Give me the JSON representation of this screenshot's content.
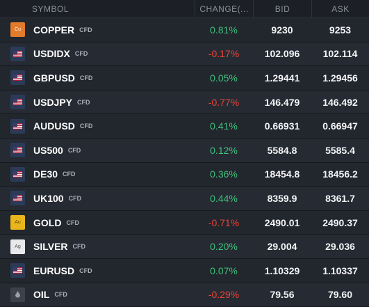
{
  "header": {
    "symbol": "SYMBOL",
    "change": "CHANGE(...",
    "bid": "BID",
    "ask": "ASK"
  },
  "rows": [
    {
      "name": "COPPER",
      "tag": "CFD",
      "change": "0.81%",
      "dir": "pos",
      "bid": "9230",
      "ask": "9253",
      "icon": "copper-icon",
      "icon_text": "Cu",
      "icon_kind": "metal-cu"
    },
    {
      "name": "USDIDX",
      "tag": "CFD",
      "change": "-0.17%",
      "dir": "neg",
      "bid": "102.096",
      "ask": "102.114",
      "icon": "us-flag-index-icon",
      "icon_text": "",
      "icon_kind": "flag"
    },
    {
      "name": "GBPUSD",
      "tag": "CFD",
      "change": "0.05%",
      "dir": "pos",
      "bid": "1.29441",
      "ask": "1.29456",
      "icon": "gb-us-flag-icon",
      "icon_text": "",
      "icon_kind": "flag"
    },
    {
      "name": "USDJPY",
      "tag": "CFD",
      "change": "-0.77%",
      "dir": "neg",
      "bid": "146.479",
      "ask": "146.492",
      "icon": "us-jp-flag-icon",
      "icon_text": "",
      "icon_kind": "flag"
    },
    {
      "name": "AUDUSD",
      "tag": "CFD",
      "change": "0.41%",
      "dir": "pos",
      "bid": "0.66931",
      "ask": "0.66947",
      "icon": "au-us-flag-icon",
      "icon_text": "",
      "icon_kind": "flag"
    },
    {
      "name": "US500",
      "tag": "CFD",
      "change": "0.12%",
      "dir": "pos",
      "bid": "5584.8",
      "ask": "5585.4",
      "icon": "us-flag-index-icon",
      "icon_text": "",
      "icon_kind": "flag"
    },
    {
      "name": "DE30",
      "tag": "CFD",
      "change": "0.36%",
      "dir": "pos",
      "bid": "18454.8",
      "ask": "18456.2",
      "icon": "de-flag-icon",
      "icon_text": "",
      "icon_kind": "flag"
    },
    {
      "name": "UK100",
      "tag": "CFD",
      "change": "0.44%",
      "dir": "pos",
      "bid": "8359.9",
      "ask": "8361.7",
      "icon": "uk-flag-icon",
      "icon_text": "",
      "icon_kind": "flag"
    },
    {
      "name": "GOLD",
      "tag": "CFD",
      "change": "-0.71%",
      "dir": "neg",
      "bid": "2490.01",
      "ask": "2490.37",
      "icon": "gold-icon",
      "icon_text": "Au",
      "icon_kind": "metal-au"
    },
    {
      "name": "SILVER",
      "tag": "CFD",
      "change": "0.20%",
      "dir": "pos",
      "bid": "29.004",
      "ask": "29.036",
      "icon": "silver-icon",
      "icon_text": "Ag",
      "icon_kind": "metal-ag"
    },
    {
      "name": "EURUSD",
      "tag": "CFD",
      "change": "0.07%",
      "dir": "pos",
      "bid": "1.10329",
      "ask": "1.10337",
      "icon": "eu-us-flag-icon",
      "icon_text": "",
      "icon_kind": "flag"
    },
    {
      "name": "OIL",
      "tag": "CFD",
      "change": "-0.29%",
      "dir": "neg",
      "bid": "79.56",
      "ask": "79.60",
      "icon": "oil-icon",
      "icon_text": "",
      "icon_kind": "oil"
    }
  ],
  "colors": {
    "positive": "#3fc07a",
    "negative": "#e8443a",
    "background": "#1c2026"
  }
}
